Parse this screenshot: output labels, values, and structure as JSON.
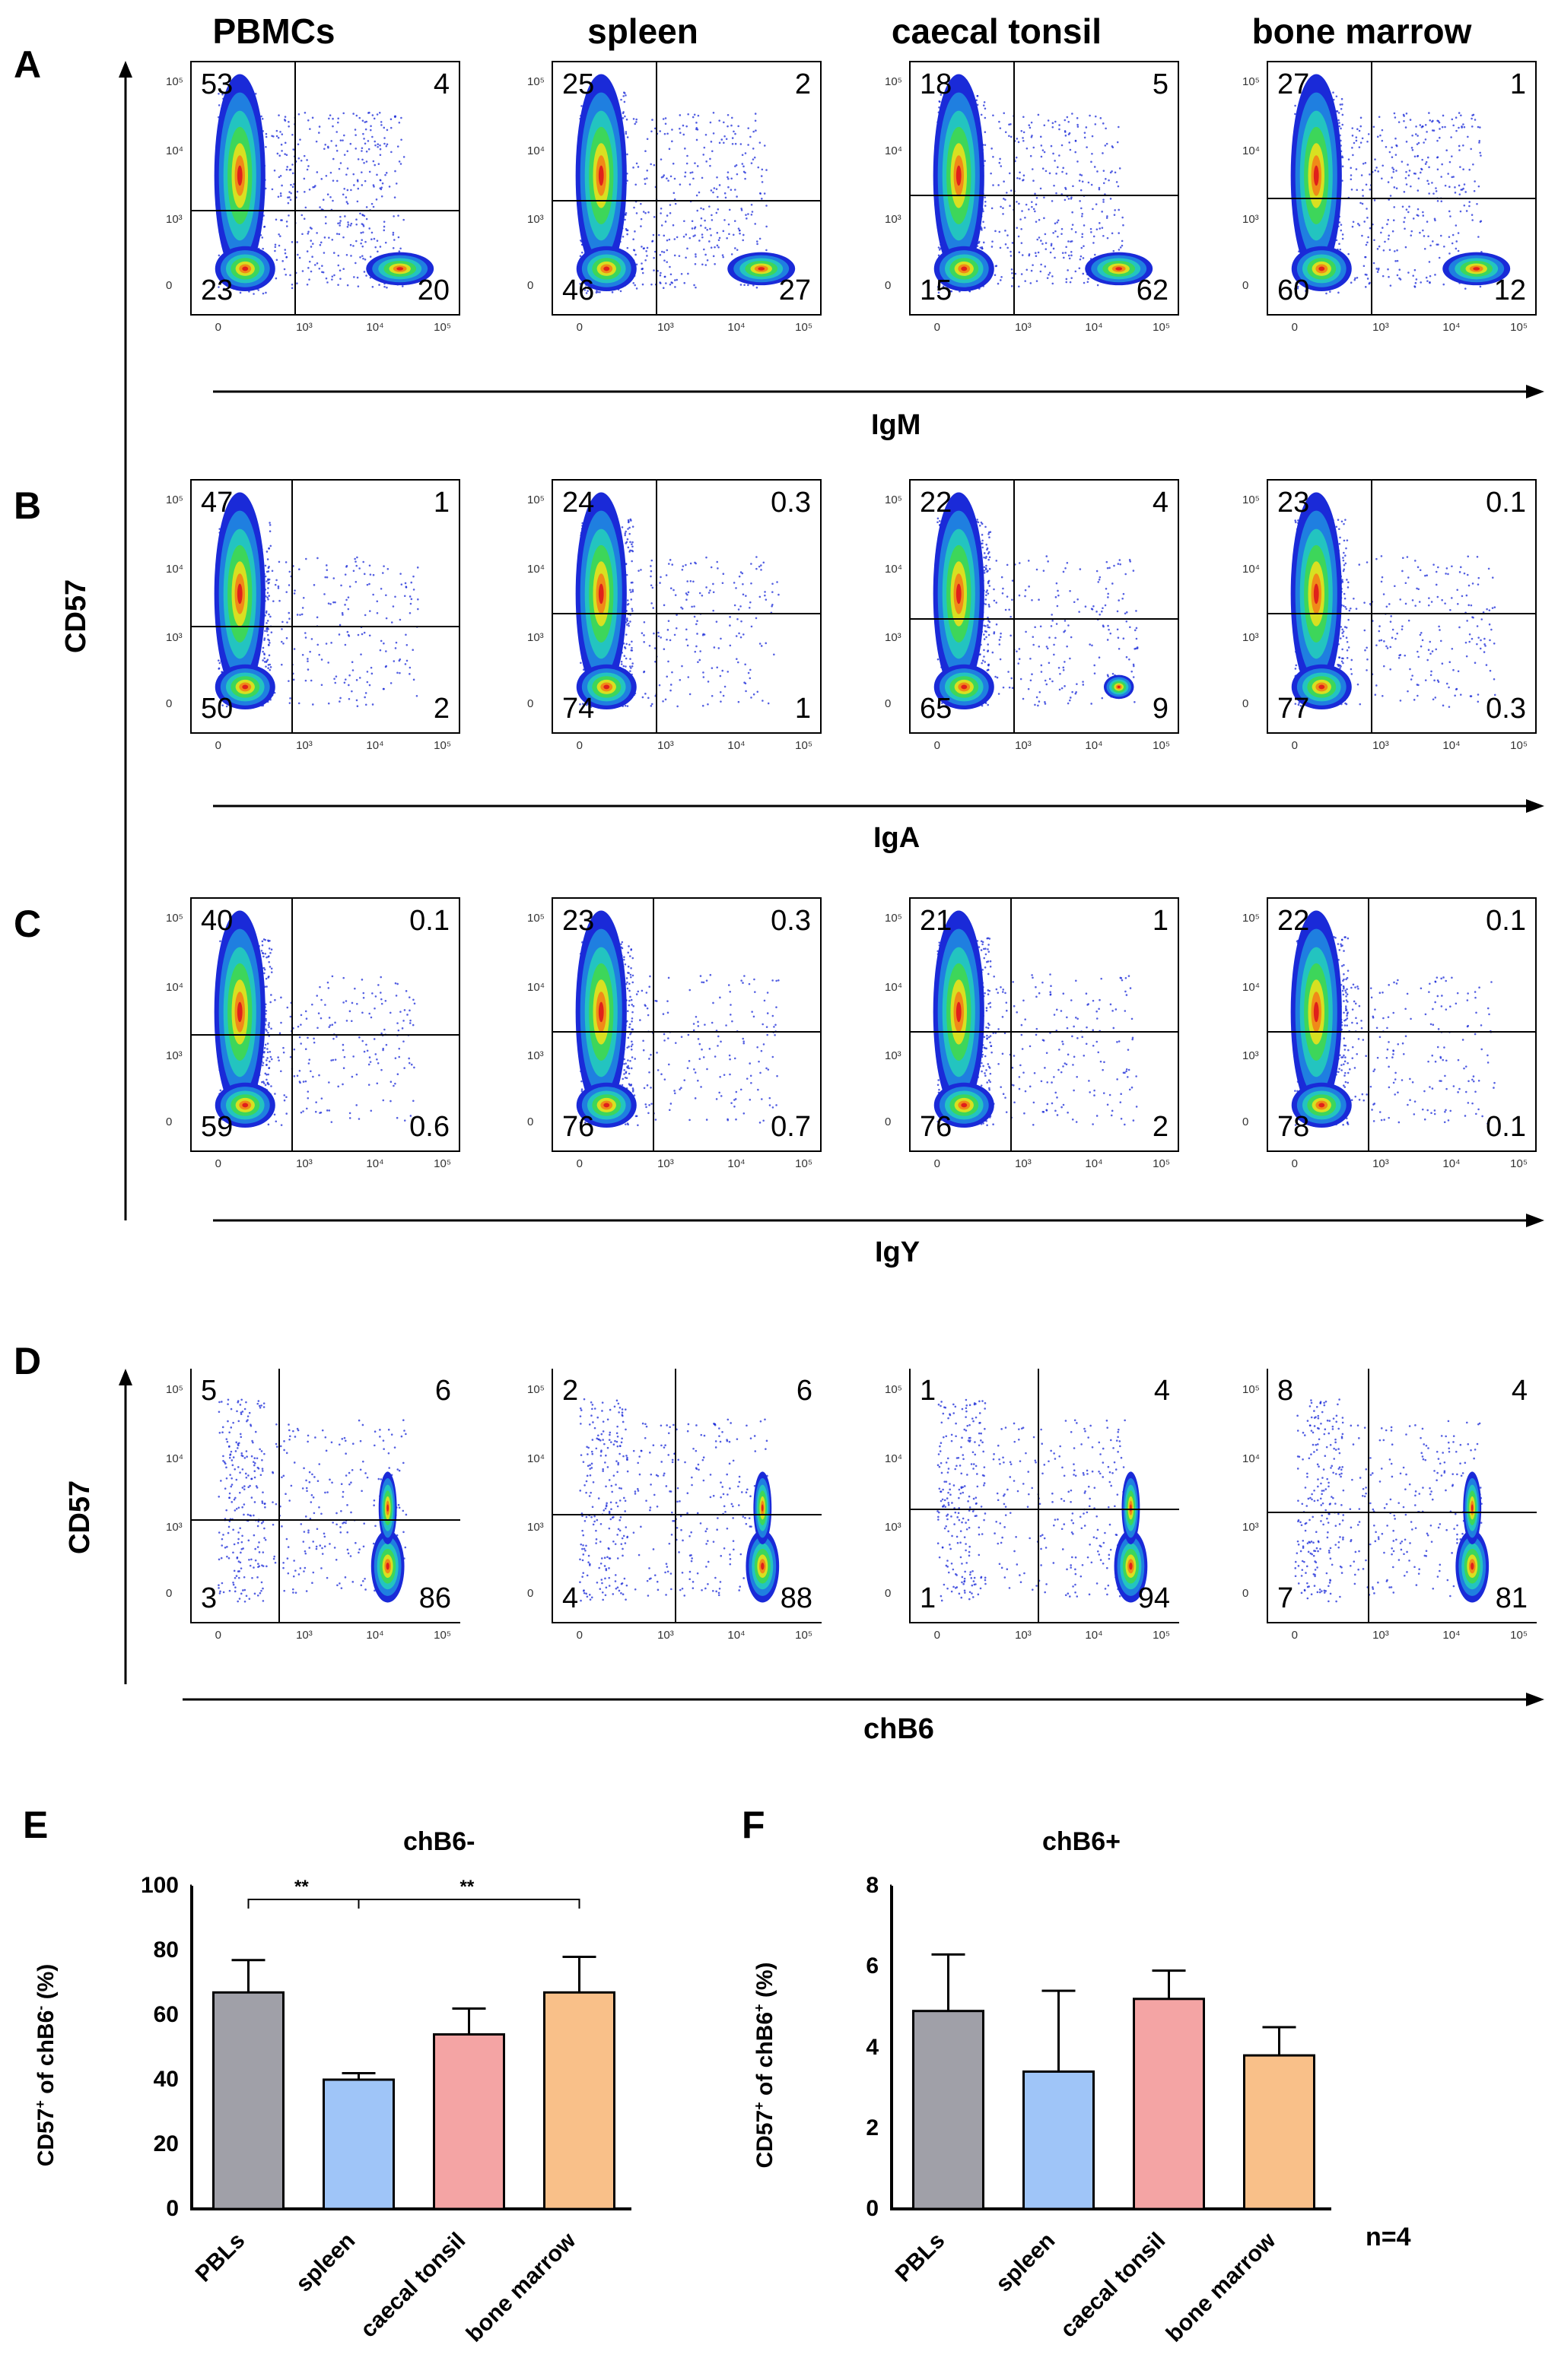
{
  "columns": [
    "PBMCs",
    "spleen",
    "caecal tonsil",
    "bone marrow"
  ],
  "panels": {
    "A": {
      "letter": "A",
      "x_axis": "IgM",
      "plots": [
        {
          "ul": "53",
          "ur": "4",
          "ll": "23",
          "lr": "20"
        },
        {
          "ul": "25",
          "ur": "2",
          "ll": "46",
          "lr": "27"
        },
        {
          "ul": "18",
          "ur": "5",
          "ll": "15",
          "lr": "62"
        },
        {
          "ul": "27",
          "ur": "1",
          "ll": "60",
          "lr": "12"
        }
      ]
    },
    "B": {
      "letter": "B",
      "x_axis": "IgA",
      "plots": [
        {
          "ul": "47",
          "ur": "1",
          "ll": "50",
          "lr": "2"
        },
        {
          "ul": "24",
          "ur": "0.3",
          "ll": "74",
          "lr": "1"
        },
        {
          "ul": "22",
          "ur": "4",
          "ll": "65",
          "lr": "9"
        },
        {
          "ul": "23",
          "ur": "0.1",
          "ll": "77",
          "lr": "0.3"
        }
      ]
    },
    "C": {
      "letter": "C",
      "x_axis": "IgY",
      "plots": [
        {
          "ul": "40",
          "ur": "0.1",
          "ll": "59",
          "lr": "0.6"
        },
        {
          "ul": "23",
          "ur": "0.3",
          "ll": "76",
          "lr": "0.7"
        },
        {
          "ul": "21",
          "ur": "1",
          "ll": "76",
          "lr": "2"
        },
        {
          "ul": "22",
          "ur": "0.1",
          "ll": "78",
          "lr": "0.1"
        }
      ]
    },
    "D": {
      "letter": "D",
      "x_axis": "chB6",
      "plots": [
        {
          "ul": "5",
          "ur": "6",
          "ll": "3",
          "lr": "86"
        },
        {
          "ul": "2",
          "ur": "6",
          "ll": "4",
          "lr": "88"
        },
        {
          "ul": "1",
          "ur": "4",
          "ll": "1",
          "lr": "94"
        },
        {
          "ul": "8",
          "ur": "4",
          "ll": "7",
          "lr": "81"
        }
      ]
    }
  },
  "y_axis_abc": "CD57",
  "y_axis_d": "CD57",
  "axis_ticks": {
    "y": [
      "10⁵",
      "10⁴",
      "10³",
      "0"
    ],
    "x": [
      "0",
      "10³",
      "10⁴",
      "10⁵"
    ]
  },
  "colors": {
    "bar_gray": "#a0a0a8",
    "bar_blue": "#9fc5f8",
    "bar_pink": "#f4a4a4",
    "bar_orange": "#f9c089",
    "dot_blue": "#1a2ad8",
    "dense_red": "#e0201b"
  },
  "chart_data": [
    {
      "type": "bar",
      "panel_letter": "E",
      "title": "chB6-",
      "ylabel_main": "CD57",
      "ylabel_sup1": "+",
      "ylabel_mid": " of chB6",
      "ylabel_sup2": "-",
      "ylabel_end": " (%)",
      "categories": [
        "PBLs",
        "spleen",
        "caecal tonsil",
        "bone marrow"
      ],
      "values": [
        67,
        40,
        54,
        67
      ],
      "errors": [
        10,
        2,
        8,
        11
      ],
      "ylim": [
        0,
        100
      ],
      "yticks": [
        "0",
        "20",
        "40",
        "60",
        "80",
        "100"
      ],
      "significance": [
        {
          "from": 0,
          "to": 1,
          "label": "**"
        },
        {
          "from": 1,
          "to": 3,
          "label": "**"
        }
      ]
    },
    {
      "type": "bar",
      "panel_letter": "F",
      "title": "chB6+",
      "ylabel_main": "CD57",
      "ylabel_sup1": "+",
      "ylabel_mid": " of chB6",
      "ylabel_sup2": "+",
      "ylabel_end": " (%)",
      "categories": [
        "PBLs",
        "spleen",
        "caecal tonsil",
        "bone marrow"
      ],
      "values": [
        4.9,
        3.4,
        5.2,
        3.8
      ],
      "errors": [
        1.4,
        2.0,
        0.7,
        0.7
      ],
      "ylim": [
        0,
        8
      ],
      "yticks": [
        "0",
        "2",
        "4",
        "6",
        "8"
      ],
      "note": "n=4"
    }
  ]
}
